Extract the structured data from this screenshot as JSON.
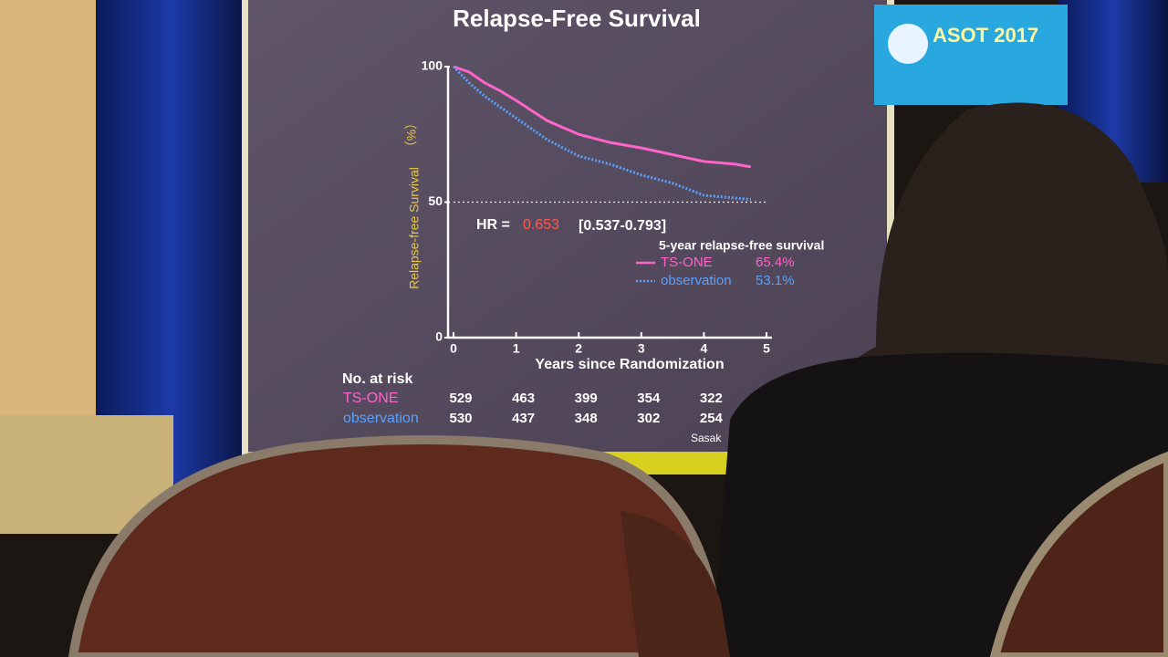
{
  "chart_data": {
    "type": "line",
    "title": "Relapse-Free Survival",
    "y_label": "Relapse-free Survival",
    "y_unit": "（%）",
    "x_label": "Years since Randomization",
    "x": [
      0,
      0.25,
      0.5,
      0.75,
      1,
      1.5,
      2,
      2.5,
      3,
      3.5,
      4,
      4.5,
      4.75
    ],
    "series": [
      {
        "name": "TS-ONE",
        "color": "#ff64c8",
        "style": "solid",
        "rate": "65.4%",
        "values": [
          100,
          98,
          94,
          91,
          87.5,
          80,
          75,
          72,
          70,
          67.5,
          65,
          64,
          63
        ]
      },
      {
        "name": "observation",
        "color": "#5aa0ff",
        "style": "dotted",
        "rate": "53.1%",
        "values": [
          100,
          94,
          89,
          85,
          81,
          73,
          67,
          64,
          60,
          57,
          52.5,
          51.5,
          51
        ]
      }
    ],
    "xlim": [
      0,
      5
    ],
    "ylim": [
      0,
      100
    ],
    "xticks": [
      0,
      1,
      2,
      3,
      4,
      5
    ],
    "yticks": [
      0,
      50,
      100
    ],
    "hline": 50,
    "hr_label": "HR = ",
    "hr_value": "0.653",
    "hr_ci": "[0.537-0.793]",
    "legend_title": "5-year relapse-free survival",
    "at_risk_title": "No. at risk",
    "at_risk": [
      {
        "name": "TS-ONE",
        "color": "#ff64c8",
        "values": [
          529,
          463,
          399,
          354,
          322
        ]
      },
      {
        "name": "observation",
        "color": "#5aa0ff",
        "values": [
          530,
          437,
          348,
          302,
          254
        ]
      }
    ],
    "footnote": "Sasak",
    "banner": "ASOT 2017"
  }
}
